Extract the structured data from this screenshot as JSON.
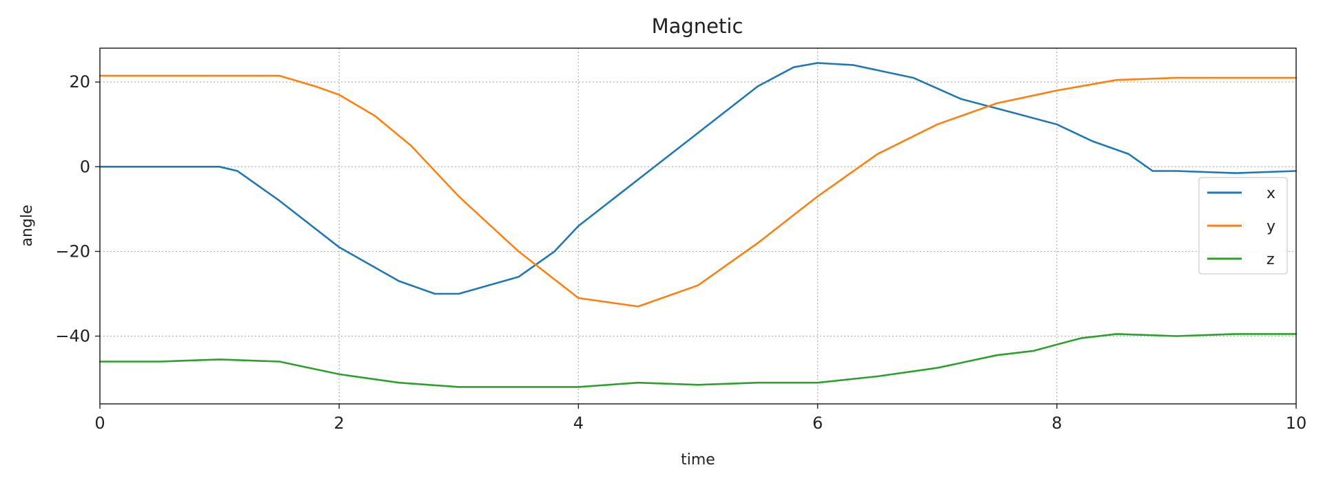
{
  "chart_data": {
    "type": "line",
    "title": "Magnetic",
    "xlabel": "time",
    "ylabel": "angle",
    "xlim": [
      0,
      10
    ],
    "ylim": [
      -56,
      28
    ],
    "xticks": [
      0,
      2,
      4,
      6,
      8,
      10
    ],
    "yticks": [
      -40,
      -20,
      0,
      20
    ],
    "xtick_labels": [
      "0",
      "2",
      "4",
      "6",
      "8",
      "10"
    ],
    "ytick_labels": [
      "−40",
      "−20",
      "0",
      "20"
    ],
    "grid": true,
    "legend_position": "center-right",
    "series": [
      {
        "name": "x",
        "color": "#1f77b4",
        "x": [
          0,
          0.5,
          1.0,
          1.15,
          1.5,
          2.0,
          2.5,
          2.8,
          3.0,
          3.5,
          3.8,
          4.0,
          4.5,
          5.0,
          5.5,
          5.8,
          6.0,
          6.3,
          6.8,
          7.2,
          7.6,
          8.0,
          8.3,
          8.6,
          8.7,
          8.8,
          9.0,
          9.5,
          10.0
        ],
        "y": [
          0,
          0,
          0,
          -1,
          -8,
          -19,
          -27,
          -30,
          -30,
          -26,
          -20,
          -14,
          -3,
          8,
          19,
          23.5,
          24.5,
          24,
          21,
          16,
          13,
          10,
          6,
          3,
          1,
          -1,
          -1,
          -1.5,
          -1
        ]
      },
      {
        "name": "y",
        "color": "#ff7f0e",
        "x": [
          0,
          0.5,
          1.0,
          1.5,
          1.8,
          2.0,
          2.3,
          2.6,
          3.0,
          3.5,
          4.0,
          4.5,
          5.0,
          5.5,
          6.0,
          6.5,
          7.0,
          7.5,
          8.0,
          8.5,
          9.0,
          9.5,
          10.0
        ],
        "y": [
          21.5,
          21.5,
          21.5,
          21.5,
          19,
          17,
          12,
          5,
          -7,
          -20,
          -31,
          -33,
          -28,
          -18,
          -7,
          3,
          10,
          15,
          18,
          20.5,
          21,
          21,
          21
        ]
      },
      {
        "name": "z",
        "color": "#2ca02c",
        "x": [
          0,
          0.5,
          1.0,
          1.5,
          2.0,
          2.5,
          3.0,
          3.5,
          4.0,
          4.5,
          5.0,
          5.5,
          6.0,
          6.5,
          7.0,
          7.5,
          7.8,
          8.0,
          8.2,
          8.5,
          9.0,
          9.5,
          10.0
        ],
        "y": [
          -46,
          -46,
          -45.5,
          -46,
          -49,
          -51,
          -52,
          -52,
          -52,
          -51,
          -51.5,
          -51,
          -51,
          -49.5,
          -47.5,
          -44.5,
          -43.5,
          -42,
          -40.5,
          -39.5,
          -40,
          -39.5,
          -39.5
        ]
      }
    ]
  }
}
